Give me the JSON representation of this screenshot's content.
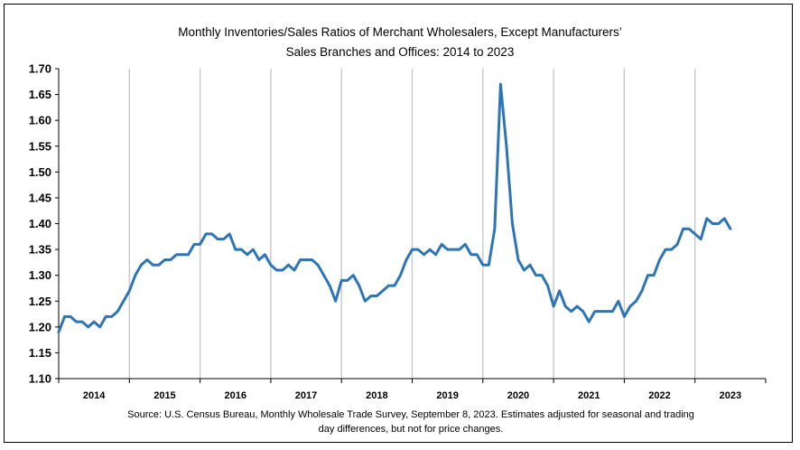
{
  "chart_data": {
    "type": "line",
    "title_lines": [
      "Monthly Inventories/Sales Ratios of Merchant Wholesalers, Except Manufacturers’",
      "Sales Branches and Offices: 2014 to 2023"
    ],
    "source_lines": [
      "Source: U.S. Census Bureau, Monthly Wholesale Trade Survey, September 8, 2023. Estimates adjusted for seasonal and trading",
      "day differences, but not for price changes."
    ],
    "y_ticks": [
      "1.10",
      "1.15",
      "1.20",
      "1.25",
      "1.30",
      "1.35",
      "1.40",
      "1.45",
      "1.50",
      "1.55",
      "1.60",
      "1.65",
      "1.70"
    ],
    "ylim": [
      1.1,
      1.7
    ],
    "x_labels": [
      "2014",
      "2015",
      "2016",
      "2017",
      "2018",
      "2019",
      "2020",
      "2021",
      "2022",
      "2023"
    ],
    "x_start": "2014-01",
    "grid": "vertical year gridlines",
    "series": [
      {
        "color": "#2E75B6",
        "values": [
          1.19,
          1.22,
          1.22,
          1.21,
          1.21,
          1.2,
          1.21,
          1.2,
          1.22,
          1.22,
          1.23,
          1.25,
          1.27,
          1.3,
          1.32,
          1.33,
          1.32,
          1.32,
          1.33,
          1.33,
          1.34,
          1.34,
          1.34,
          1.36,
          1.36,
          1.38,
          1.38,
          1.37,
          1.37,
          1.38,
          1.35,
          1.35,
          1.34,
          1.35,
          1.33,
          1.34,
          1.32,
          1.31,
          1.31,
          1.32,
          1.31,
          1.33,
          1.33,
          1.33,
          1.32,
          1.3,
          1.28,
          1.25,
          1.29,
          1.29,
          1.3,
          1.28,
          1.25,
          1.26,
          1.26,
          1.27,
          1.28,
          1.28,
          1.3,
          1.33,
          1.35,
          1.35,
          1.34,
          1.35,
          1.34,
          1.36,
          1.35,
          1.35,
          1.35,
          1.36,
          1.34,
          1.34,
          1.32,
          1.32,
          1.39,
          1.67,
          1.55,
          1.4,
          1.33,
          1.31,
          1.32,
          1.3,
          1.3,
          1.28,
          1.24,
          1.27,
          1.24,
          1.23,
          1.24,
          1.23,
          1.21,
          1.23,
          1.23,
          1.23,
          1.23,
          1.25,
          1.22,
          1.24,
          1.25,
          1.27,
          1.3,
          1.3,
          1.33,
          1.35,
          1.35,
          1.36,
          1.39,
          1.39,
          1.38,
          1.37,
          1.41,
          1.4,
          1.4,
          1.41,
          1.39
        ]
      }
    ]
  }
}
